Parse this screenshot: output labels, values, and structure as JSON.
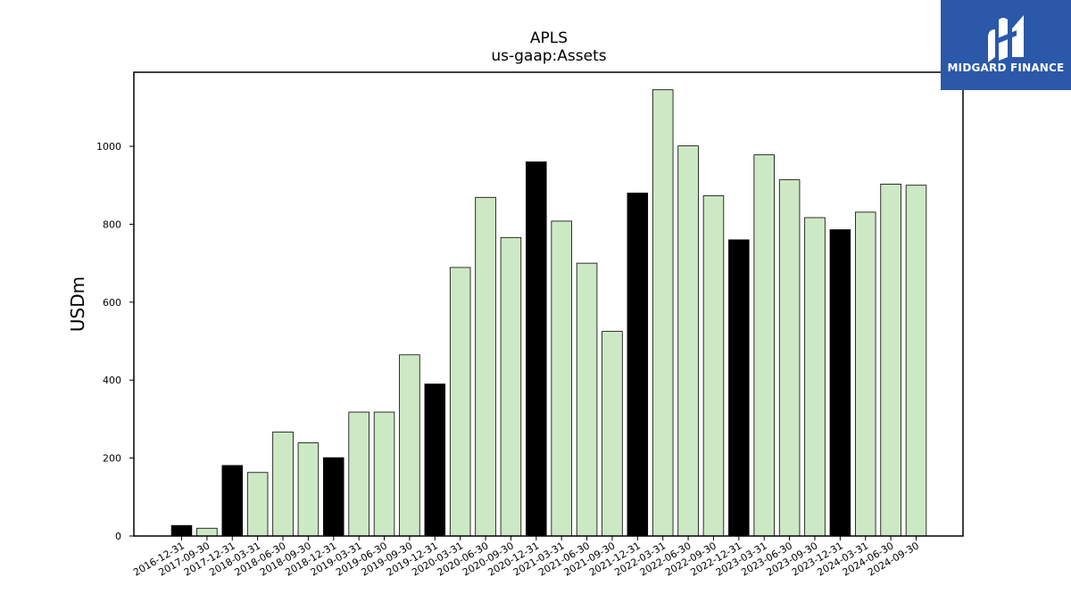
{
  "logo": {
    "text": "MIDGARD FINANCE",
    "background": "#2b58a8",
    "icon": "midgard-m-icon"
  },
  "chart_data": {
    "type": "bar",
    "title": "APLS",
    "subtitle": "us-gaap:Assets",
    "xlabel": "",
    "ylabel": "USDm",
    "ylim": [
      0,
      1190
    ],
    "yticks": [
      0,
      200,
      400,
      600,
      800,
      1000
    ],
    "grid": false,
    "colors": {
      "annual": "#000000",
      "quarterly": "#cce8c4",
      "edge": "#000000"
    },
    "categories": [
      "2016-12-31",
      "2017-09-30",
      "2017-12-31",
      "2018-03-31",
      "2018-06-30",
      "2018-09-30",
      "2018-12-31",
      "2019-03-31",
      "2019-06-30",
      "2019-09-30",
      "2019-12-31",
      "2020-03-31",
      "2020-06-30",
      "2020-09-30",
      "2020-12-31",
      "2021-03-31",
      "2021-06-30",
      "2021-09-30",
      "2021-12-31",
      "2022-03-31",
      "2022-06-30",
      "2022-09-30",
      "2022-12-31",
      "2023-03-31",
      "2023-06-30",
      "2023-09-30",
      "2023-12-31",
      "2024-03-31",
      "2024-06-30",
      "2024-09-30"
    ],
    "values": [
      27,
      20,
      181,
      163,
      267,
      239,
      201,
      318,
      318,
      465,
      390,
      689,
      869,
      766,
      960,
      808,
      700,
      525,
      880,
      1145,
      1001,
      873,
      760,
      978,
      914,
      817,
      786,
      831,
      903,
      900
    ],
    "highlight": [
      true,
      false,
      true,
      false,
      false,
      false,
      true,
      false,
      false,
      false,
      true,
      false,
      false,
      false,
      true,
      false,
      false,
      false,
      true,
      false,
      false,
      false,
      true,
      false,
      false,
      false,
      true,
      false,
      false,
      false
    ]
  }
}
